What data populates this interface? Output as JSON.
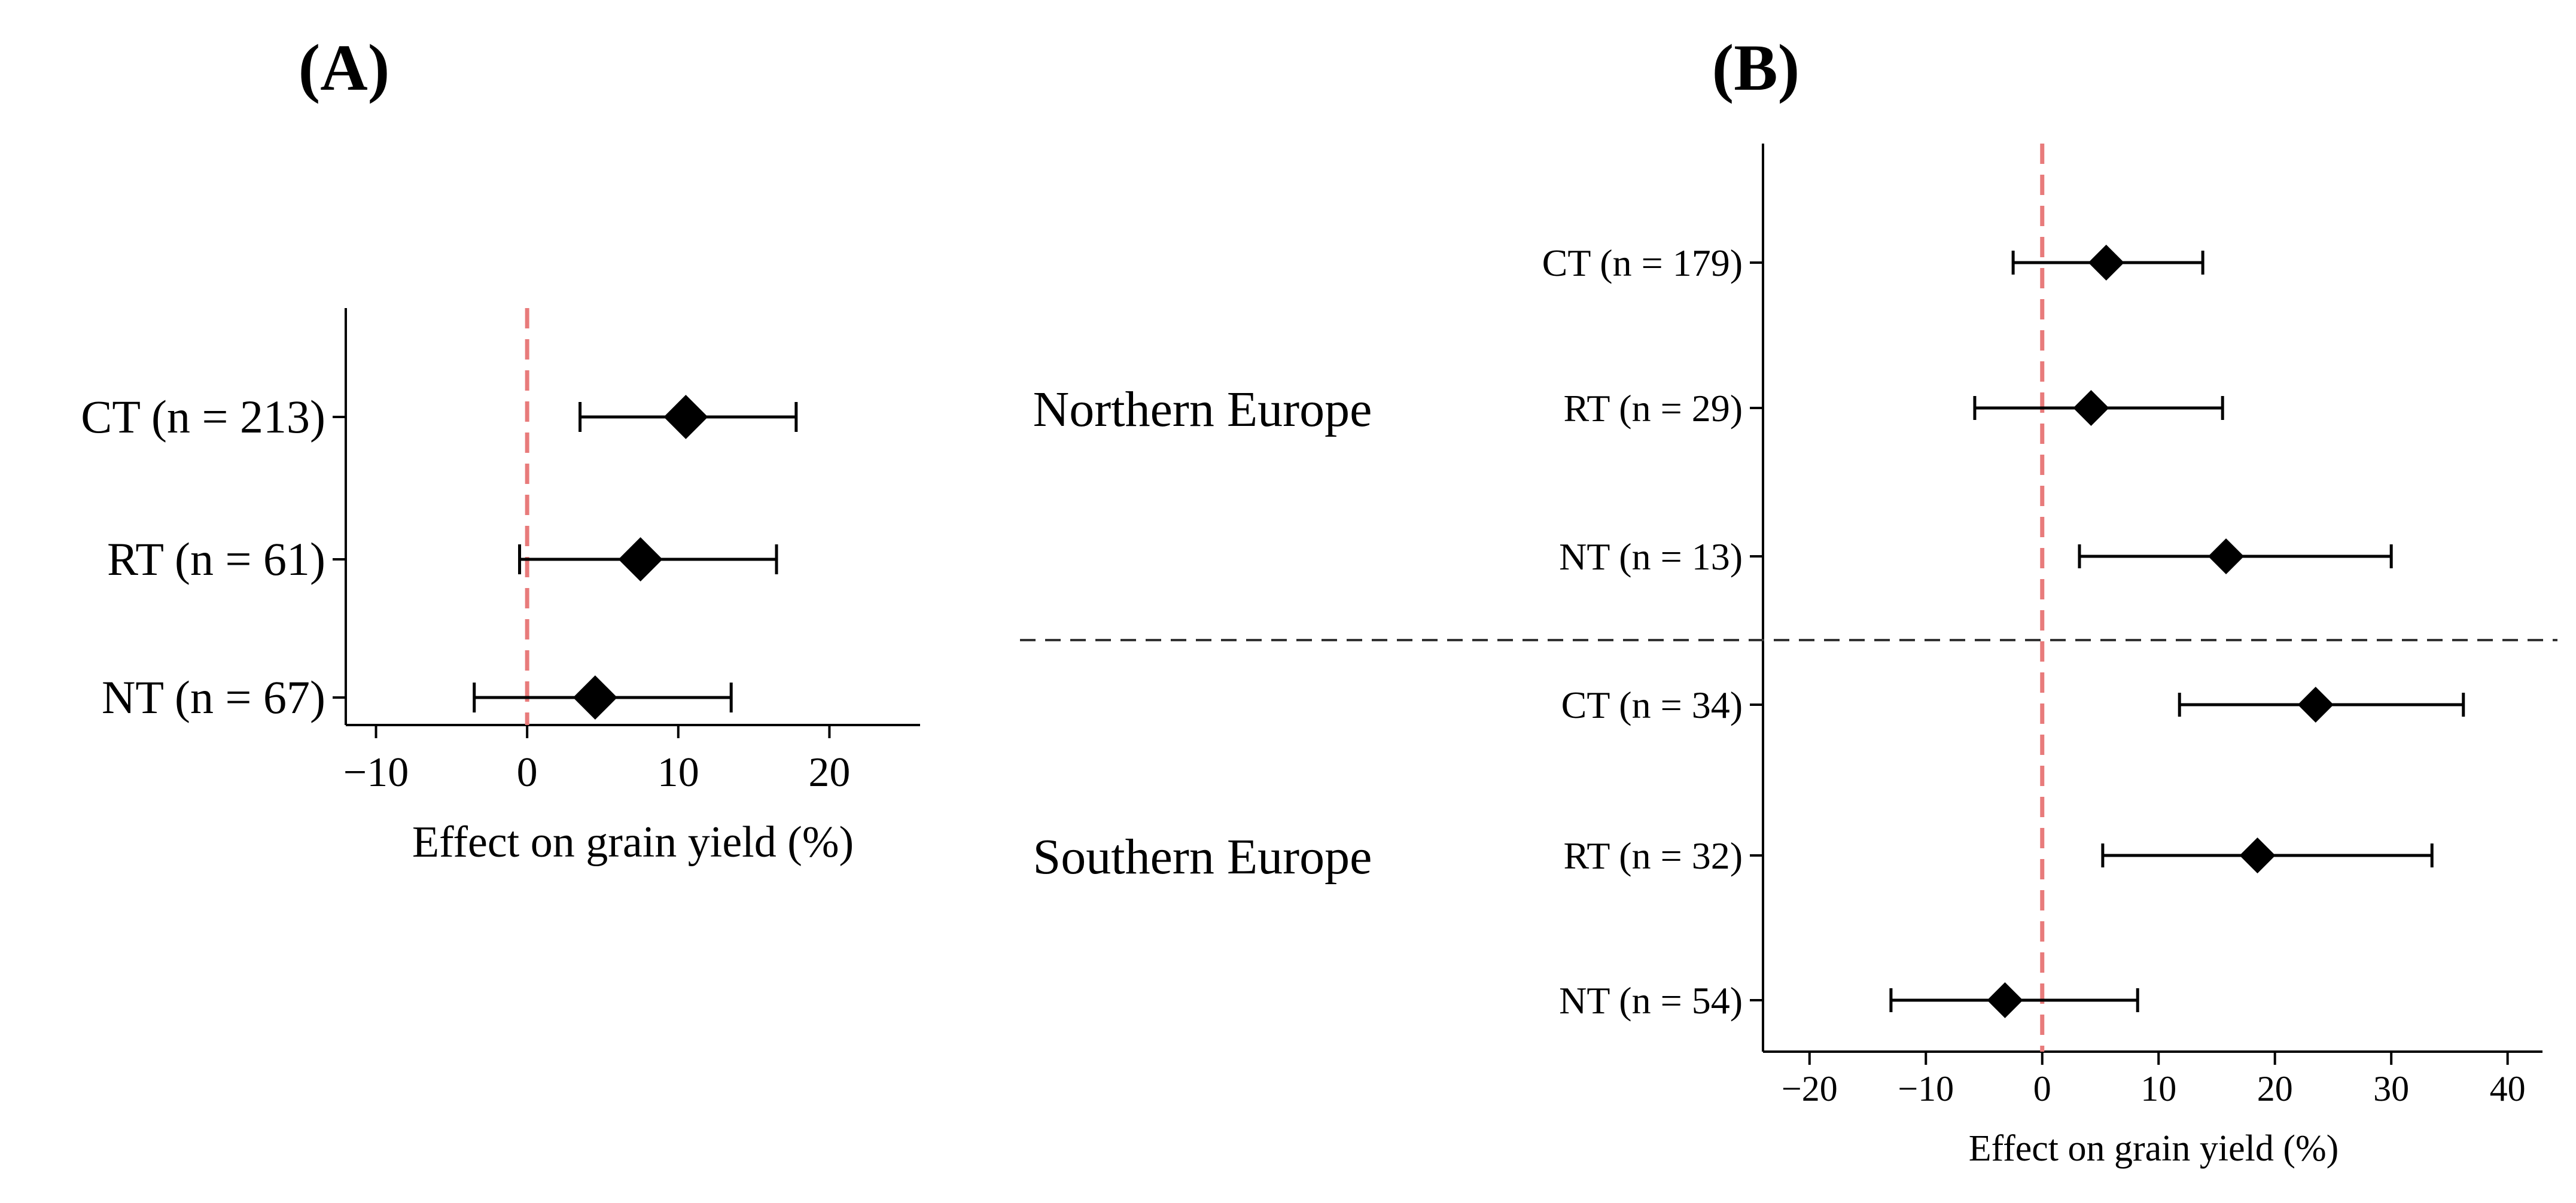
{
  "chart_data": [
    {
      "panel_label": "(A)",
      "type": "forest",
      "xlabel": "Effect on grain yield (%)",
      "xlim": [
        -12,
        26
      ],
      "xticks": [
        -10,
        0,
        10,
        20
      ],
      "reference_line": 0,
      "colors": {
        "reference": "#e87b7b",
        "marker": "#000000",
        "axis": "#000000"
      },
      "rows": [
        {
          "label": "CT (n = 213)",
          "estimate": 10.5,
          "lower": 3.5,
          "upper": 17.8
        },
        {
          "label": "RT (n = 61)",
          "estimate": 7.5,
          "lower": -0.5,
          "upper": 16.5
        },
        {
          "label": "NT (n = 67)",
          "estimate": 4.5,
          "lower": -3.5,
          "upper": 13.5
        }
      ]
    },
    {
      "panel_label": "(B)",
      "type": "forest",
      "xlabel": "Effect on grain yield (%)",
      "xlim": [
        -24,
        43
      ],
      "xticks": [
        -20,
        -10,
        0,
        10,
        20,
        30,
        40
      ],
      "reference_line": 0,
      "colors": {
        "reference": "#e87b7b",
        "marker": "#000000",
        "axis": "#000000",
        "separator": "#333333"
      },
      "groups": [
        {
          "name": "Northern Europe",
          "rows": [
            {
              "label": "CT (n = 179)",
              "estimate": 5.5,
              "lower": -2.5,
              "upper": 13.8
            },
            {
              "label": "RT (n = 29)",
              "estimate": 4.2,
              "lower": -5.8,
              "upper": 15.5
            },
            {
              "label": "NT (n = 13)",
              "estimate": 15.8,
              "lower": 3.2,
              "upper": 30.0
            }
          ]
        },
        {
          "name": "Southern Europe",
          "rows": [
            {
              "label": "CT (n = 34)",
              "estimate": 23.5,
              "lower": 11.8,
              "upper": 36.2
            },
            {
              "label": "RT (n = 32)",
              "estimate": 18.5,
              "lower": 5.2,
              "upper": 33.5
            },
            {
              "label": "NT (n = 54)",
              "estimate": -3.2,
              "lower": -13.0,
              "upper": 8.2
            }
          ]
        }
      ]
    }
  ]
}
